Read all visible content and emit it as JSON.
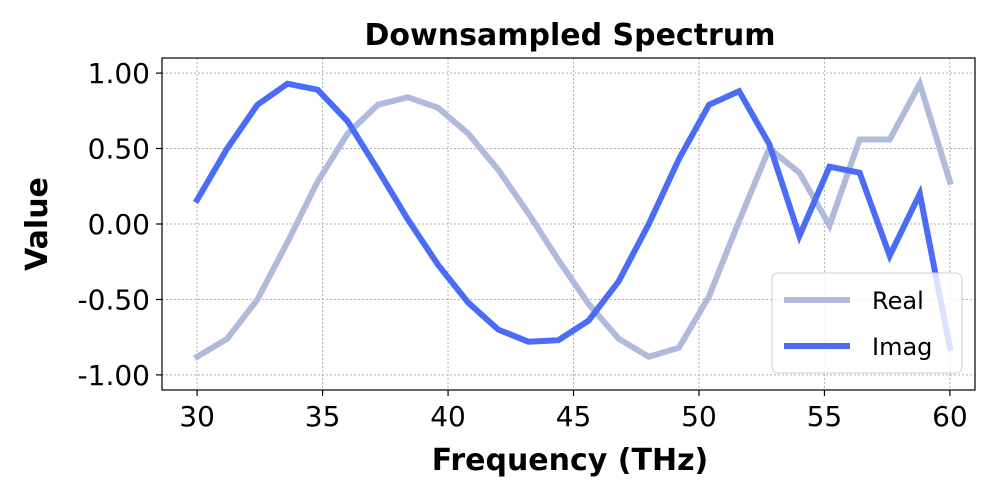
{
  "chart_data": {
    "type": "line",
    "title": "Downsampled Spectrum",
    "xlabel": "Frequency (THz)",
    "ylabel": "Value",
    "xlim": [
      28.6,
      61.0
    ],
    "ylim": [
      -1.1,
      1.1
    ],
    "xticks": [
      30,
      35,
      40,
      45,
      50,
      55,
      60
    ],
    "xtick_labels": [
      "30",
      "35",
      "40",
      "45",
      "50",
      "55",
      "60"
    ],
    "yticks": [
      -1.0,
      -0.5,
      0.0,
      0.5,
      1.0
    ],
    "ytick_labels": [
      "-1.00",
      "-0.50",
      "0.00",
      "0.50",
      "1.00"
    ],
    "grid": true,
    "legend_position": "lower-right",
    "x": [
      30.0,
      31.2,
      32.4,
      33.6,
      34.8,
      36.0,
      37.2,
      38.4,
      39.6,
      40.8,
      42.0,
      43.2,
      44.4,
      45.6,
      46.8,
      48.0,
      49.2,
      50.4,
      51.6,
      52.8,
      54.0,
      55.2,
      56.4,
      57.6,
      58.8,
      60.0
    ],
    "series": [
      {
        "name": "Real",
        "color": "#b0bbdc",
        "values": [
          -0.88,
          -0.76,
          -0.5,
          -0.12,
          0.28,
          0.6,
          0.79,
          0.84,
          0.77,
          0.6,
          0.36,
          0.07,
          -0.24,
          -0.53,
          -0.76,
          -0.88,
          -0.82,
          -0.48,
          0.02,
          0.5,
          0.34,
          -0.01,
          0.56,
          0.56,
          0.93,
          0.28
        ]
      },
      {
        "name": "Imag",
        "color": "#4a6cf7",
        "values": [
          0.16,
          0.5,
          0.79,
          0.93,
          0.89,
          0.68,
          0.36,
          0.03,
          -0.27,
          -0.52,
          -0.7,
          -0.78,
          -0.77,
          -0.64,
          -0.38,
          0.0,
          0.43,
          0.79,
          0.88,
          0.53,
          -0.08,
          0.38,
          0.34,
          -0.21,
          0.2,
          -0.82
        ]
      }
    ]
  }
}
